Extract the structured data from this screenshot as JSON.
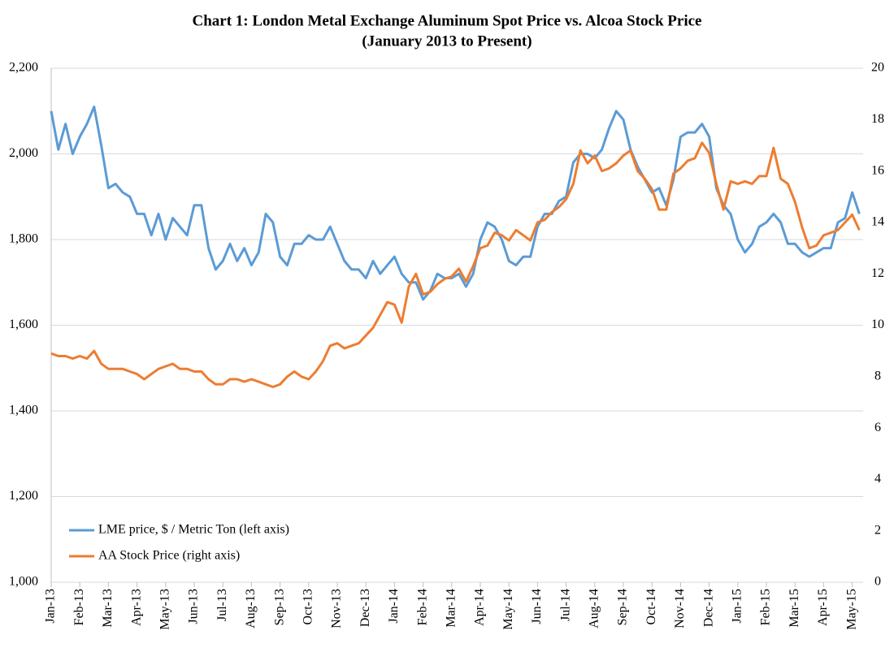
{
  "chart_data": {
    "type": "line",
    "title": "Chart 1: London Metal Exchange Aluminum Spot Price vs. Alcoa Stock Price",
    "subtitle": "(January 2013 to Present)",
    "categories": [
      "Jan-13",
      null,
      null,
      null,
      "Feb-13",
      null,
      null,
      null,
      "Mar-13",
      null,
      null,
      null,
      "Apr-13",
      null,
      null,
      null,
      "May-13",
      null,
      null,
      null,
      "Jun-13",
      null,
      null,
      null,
      "Jul-13",
      null,
      null,
      null,
      "Aug-13",
      null,
      null,
      null,
      "Sep-13",
      null,
      null,
      null,
      "Oct-13",
      null,
      null,
      null,
      "Nov-13",
      null,
      null,
      null,
      "Dec-13",
      null,
      null,
      null,
      "Jan-14",
      null,
      null,
      null,
      "Feb-14",
      null,
      null,
      null,
      "Mar-14",
      null,
      null,
      null,
      "Apr-14",
      null,
      null,
      null,
      "May-14",
      null,
      null,
      null,
      "Jun-14",
      null,
      null,
      null,
      "Jul-14",
      null,
      null,
      null,
      "Aug-14",
      null,
      null,
      null,
      "Sep-14",
      null,
      null,
      null,
      "Oct-14",
      null,
      null,
      null,
      "Nov-14",
      null,
      null,
      null,
      "Dec-14",
      null,
      null,
      null,
      "Jan-15",
      null,
      null,
      null,
      "Feb-15",
      null,
      null,
      null,
      "Mar-15",
      null,
      null,
      null,
      "Apr-15",
      null,
      null,
      null,
      "May-15",
      null
    ],
    "series": [
      {
        "name": "LME price, $ / Metric Ton (left axis)",
        "color": "#5b9bd5",
        "axis": "y",
        "values": [
          2100,
          2010,
          2070,
          2000,
          2040,
          2070,
          2110,
          2020,
          1920,
          1930,
          1910,
          1900,
          1860,
          1860,
          1810,
          1860,
          1800,
          1850,
          1830,
          1810,
          1880,
          1880,
          1780,
          1730,
          1750,
          1790,
          1750,
          1780,
          1740,
          1770,
          1860,
          1840,
          1760,
          1740,
          1790,
          1790,
          1810,
          1800,
          1800,
          1830,
          1790,
          1750,
          1730,
          1730,
          1710,
          1750,
          1720,
          1740,
          1760,
          1720,
          1700,
          1700,
          1660,
          1680,
          1720,
          1710,
          1710,
          1720,
          1690,
          1720,
          1800,
          1840,
          1830,
          1800,
          1750,
          1740,
          1760,
          1760,
          1830,
          1860,
          1860,
          1890,
          1900,
          1980,
          2000,
          2000,
          1990,
          2010,
          2060,
          2100,
          2080,
          2010,
          1970,
          1940,
          1910,
          1920,
          1880,
          1940,
          2040,
          2050,
          2050,
          2070,
          2040,
          1920,
          1880,
          1860,
          1800,
          1770,
          1790,
          1830,
          1840,
          1860,
          1840,
          1790,
          1790,
          1770,
          1760,
          1770,
          1780,
          1780,
          1840,
          1850,
          1910,
          1860
        ]
      },
      {
        "name": "AA Stock Price (right axis)",
        "color": "#ed7d31",
        "axis": "y2",
        "values": [
          8.9,
          8.8,
          8.8,
          8.7,
          8.8,
          8.7,
          9.0,
          8.5,
          8.3,
          8.3,
          8.3,
          8.2,
          8.1,
          7.9,
          8.1,
          8.3,
          8.4,
          8.5,
          8.3,
          8.3,
          8.2,
          8.2,
          7.9,
          7.7,
          7.7,
          7.9,
          7.9,
          7.8,
          7.9,
          7.8,
          7.7,
          7.6,
          7.7,
          8.0,
          8.2,
          8.0,
          7.9,
          8.2,
          8.6,
          9.2,
          9.3,
          9.1,
          9.2,
          9.3,
          9.6,
          9.9,
          10.4,
          10.9,
          10.8,
          10.1,
          11.5,
          12.0,
          11.2,
          11.3,
          11.6,
          11.8,
          11.9,
          12.2,
          11.7,
          12.3,
          13.0,
          13.1,
          13.6,
          13.5,
          13.3,
          13.7,
          13.5,
          13.3,
          14.0,
          14.1,
          14.4,
          14.6,
          14.9,
          15.5,
          16.8,
          16.3,
          16.6,
          16.0,
          16.1,
          16.3,
          16.6,
          16.8,
          16.0,
          15.7,
          15.3,
          14.5,
          14.5,
          15.9,
          16.1,
          16.4,
          16.5,
          17.1,
          16.7,
          15.5,
          14.5,
          15.6,
          15.5,
          15.6,
          15.5,
          15.8,
          15.8,
          16.9,
          15.7,
          15.5,
          14.8,
          13.8,
          13.0,
          13.1,
          13.5,
          13.6,
          13.7,
          14.0,
          14.3,
          13.7
        ]
      }
    ],
    "ylim": [
      1000,
      2200
    ],
    "yticks": [
      {
        "value": 1000,
        "label": "1,000"
      },
      {
        "value": 1200,
        "label": "1,200"
      },
      {
        "value": 1400,
        "label": "1,400"
      },
      {
        "value": 1600,
        "label": "1,600"
      },
      {
        "value": 1800,
        "label": "1,800"
      },
      {
        "value": 2000,
        "label": "2,000"
      },
      {
        "value": 2200,
        "label": "2,200"
      }
    ],
    "y2lim": [
      0,
      20
    ],
    "y2ticks": [
      0,
      2,
      4,
      6,
      8,
      10,
      12,
      14,
      16,
      18,
      20
    ],
    "grid": true,
    "legend": "lower-left"
  }
}
